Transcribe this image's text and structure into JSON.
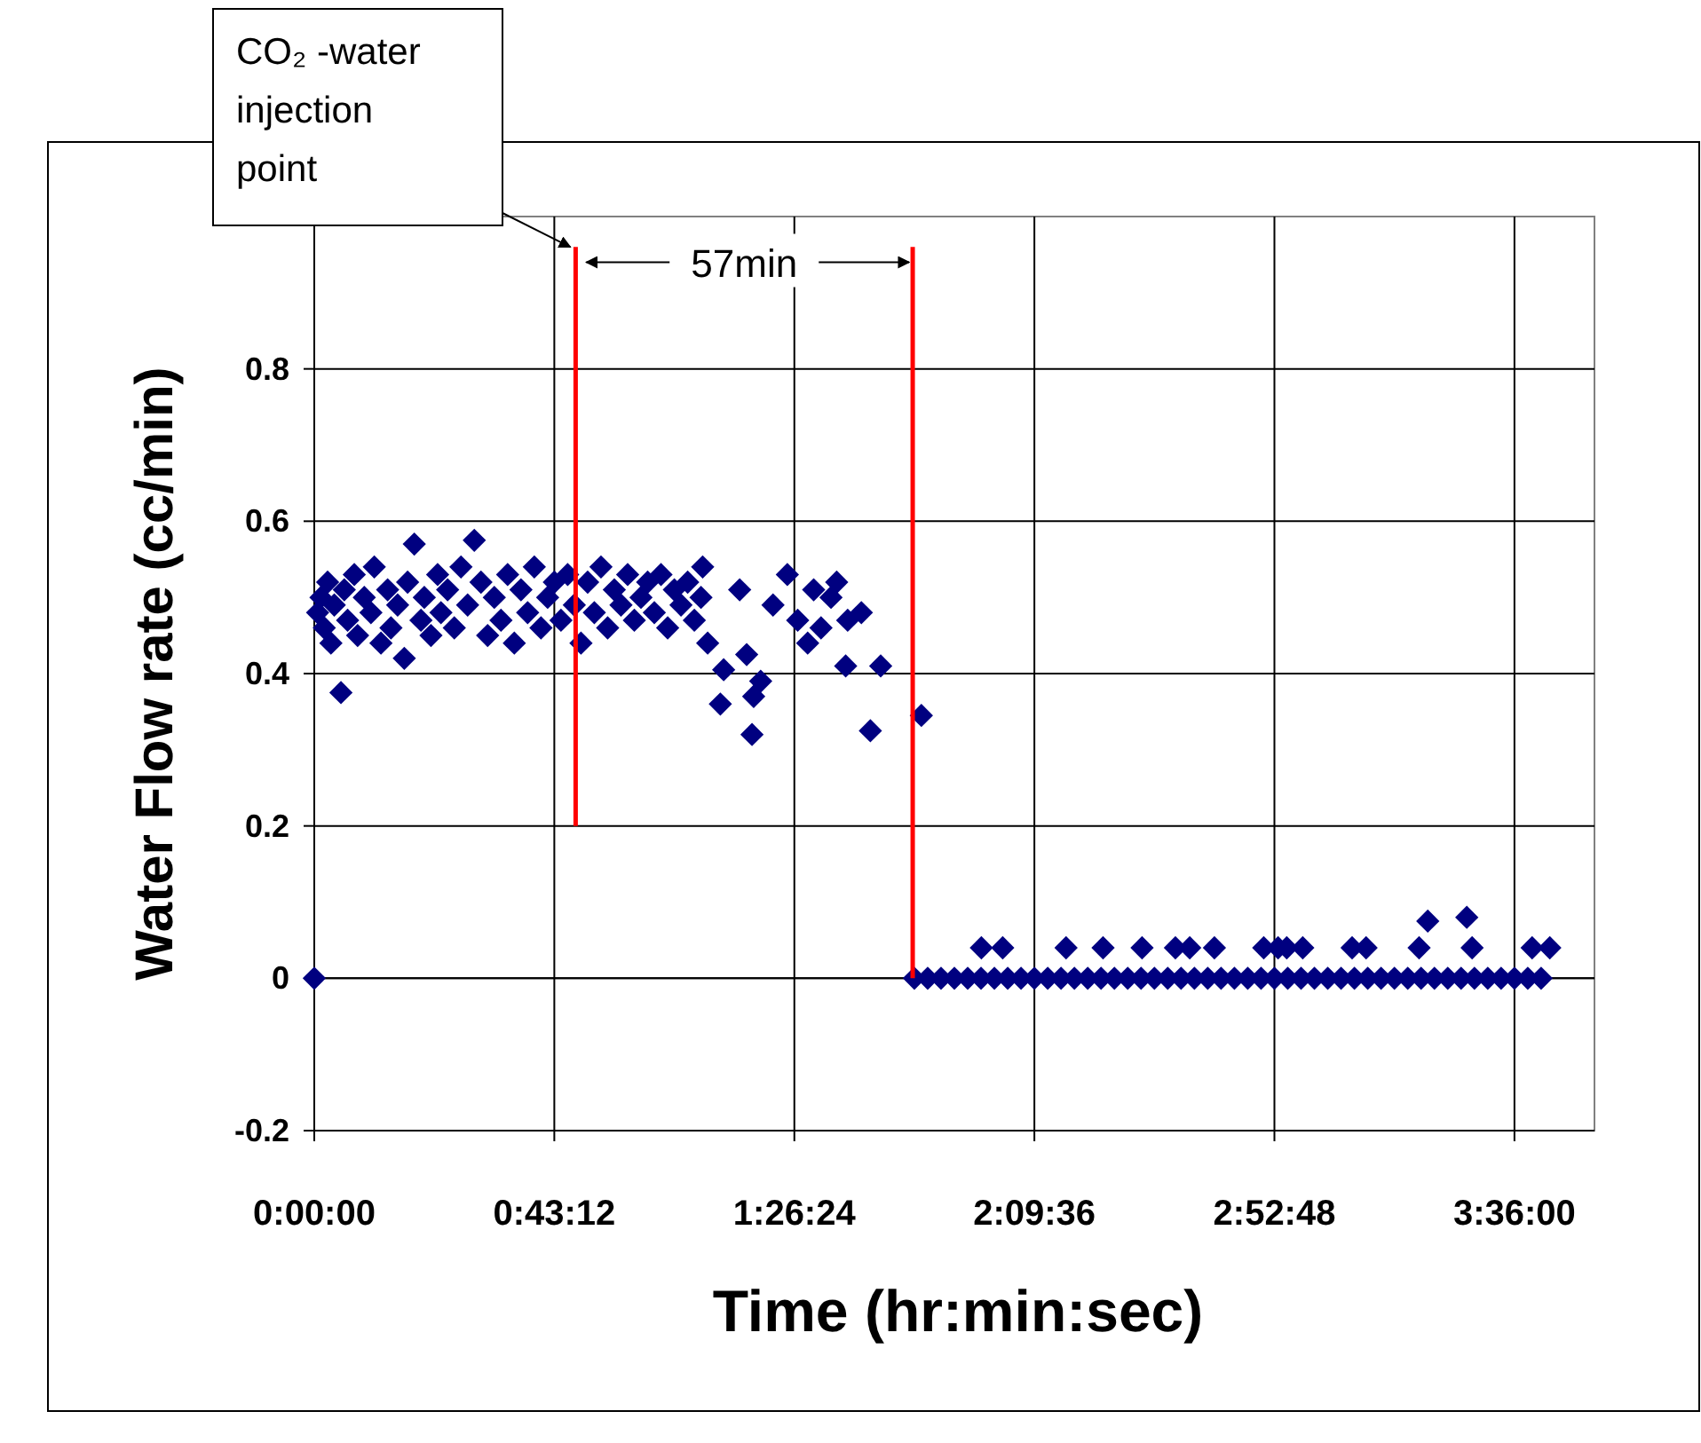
{
  "chart_data": {
    "type": "scatter",
    "xlabel": "Time (hr:min:sec)",
    "ylabel": "Water Flow rate (cc/min)",
    "xlim": [
      0,
      3.84
    ],
    "ylim": [
      -0.2,
      1
    ],
    "xticks": [
      {
        "value": 0,
        "label": "0:00:00"
      },
      {
        "value": 0.72,
        "label": "0:43:12"
      },
      {
        "value": 1.44,
        "label": "1:26:24"
      },
      {
        "value": 2.16,
        "label": "2:09:36"
      },
      {
        "value": 2.88,
        "label": "2:52:48"
      },
      {
        "value": 3.6,
        "label": "3:36:00"
      }
    ],
    "yticks": [
      -0.2,
      0,
      0.2,
      0.4,
      0.6,
      0.8
    ],
    "grid": true,
    "marker": "diamond",
    "series": [
      {
        "color": "#000080",
        "x": [
          0,
          0.01,
          0.02,
          0.03,
          0.04,
          0.05,
          0.06,
          0.08,
          0.09,
          0.1,
          0.12,
          0.13,
          0.15,
          0.17,
          0.18,
          0.2,
          0.22,
          0.23,
          0.25,
          0.27,
          0.28,
          0.3,
          0.32,
          0.33,
          0.35,
          0.37,
          0.38,
          0.4,
          0.42,
          0.44,
          0.46,
          0.48,
          0.5,
          0.52,
          0.54,
          0.56,
          0.58,
          0.6,
          0.62,
          0.64,
          0.66,
          0.68,
          0.7,
          0.72,
          0.74,
          0.76,
          0.78,
          0.8,
          0.82,
          0.84,
          0.86,
          0.88,
          0.9,
          0.92,
          0.94,
          0.96,
          0.98,
          1.0,
          1.02,
          1.04,
          1.06,
          1.08,
          1.1,
          1.12,
          1.14,
          1.16,
          1.18,
          1.165,
          1.218,
          1.228,
          1.276,
          1.297,
          1.313,
          1.318,
          1.339,
          1.376,
          1.419,
          1.45,
          1.48,
          1.498,
          1.52,
          1.55,
          1.567,
          1.594,
          1.6,
          1.641,
          1.668,
          1.699,
          1.821,
          1.8,
          1.84,
          1.88,
          1.92,
          1.96,
          2.0,
          2.04,
          2.08,
          2.12,
          2.16,
          2.2,
          2.24,
          2.28,
          2.32,
          2.36,
          2.4,
          2.44,
          2.48,
          2.52,
          2.56,
          2.6,
          2.64,
          2.68,
          2.72,
          2.76,
          2.8,
          2.84,
          2.88,
          2.92,
          2.96,
          3.0,
          3.04,
          3.08,
          3.12,
          3.16,
          3.2,
          3.24,
          3.28,
          3.32,
          3.36,
          3.4,
          3.44,
          3.48,
          3.52,
          3.56,
          3.6,
          3.64,
          3.68,
          2.001,
          2.065,
          2.255,
          2.366,
          2.483,
          2.583,
          2.626,
          2.7,
          2.848,
          2.891,
          2.917,
          2.965,
          3.113,
          3.155,
          3.314,
          3.473,
          3.653,
          3.706,
          3.34,
          3.457
        ],
        "values": [
          0,
          0.48,
          0.5,
          0.46,
          0.52,
          0.44,
          0.49,
          0.375,
          0.51,
          0.47,
          0.53,
          0.45,
          0.5,
          0.48,
          0.54,
          0.44,
          0.51,
          0.46,
          0.49,
          0.42,
          0.52,
          0.57,
          0.47,
          0.5,
          0.45,
          0.53,
          0.48,
          0.51,
          0.46,
          0.54,
          0.49,
          0.575,
          0.52,
          0.45,
          0.5,
          0.47,
          0.53,
          0.44,
          0.51,
          0.48,
          0.54,
          0.46,
          0.5,
          0.52,
          0.47,
          0.53,
          0.49,
          0.44,
          0.52,
          0.48,
          0.54,
          0.46,
          0.51,
          0.49,
          0.53,
          0.47,
          0.5,
          0.52,
          0.48,
          0.53,
          0.46,
          0.51,
          0.49,
          0.52,
          0.47,
          0.5,
          0.44,
          0.54,
          0.36,
          0.405,
          0.51,
          0.425,
          0.32,
          0.37,
          0.39,
          0.49,
          0.53,
          0.47,
          0.44,
          0.51,
          0.46,
          0.5,
          0.52,
          0.41,
          0.47,
          0.48,
          0.325,
          0.41,
          0.345,
          0,
          0,
          0,
          0,
          0,
          0,
          0,
          0,
          0,
          0,
          0,
          0,
          0,
          0,
          0,
          0,
          0,
          0,
          0,
          0,
          0,
          0,
          0,
          0,
          0,
          0,
          0,
          0,
          0,
          0,
          0,
          0,
          0,
          0,
          0,
          0,
          0,
          0,
          0,
          0,
          0,
          0,
          0,
          0,
          0,
          0,
          0,
          0,
          0.04,
          0.04,
          0.04,
          0.04,
          0.04,
          0.04,
          0.04,
          0.04,
          0.04,
          0.04,
          0.04,
          0.04,
          0.04,
          0.04,
          0.04,
          0.04,
          0.04,
          0.04,
          0.075,
          0.08
        ]
      },
      {
        "type": "line",
        "color": "#ff0000",
        "marker": "none",
        "x": [
          0.784,
          0.784
        ],
        "values": [
          0.2,
          0.96
        ]
      },
      {
        "type": "line",
        "color": "#ff0000",
        "marker": "none",
        "x": [
          1.795,
          1.795
        ],
        "values": [
          0,
          0.96
        ]
      }
    ],
    "annotations": [
      "CO₂ -water injection point",
      {
        "text": "57min",
        "x": 1.795,
        "y": 0.94
      }
    ]
  }
}
